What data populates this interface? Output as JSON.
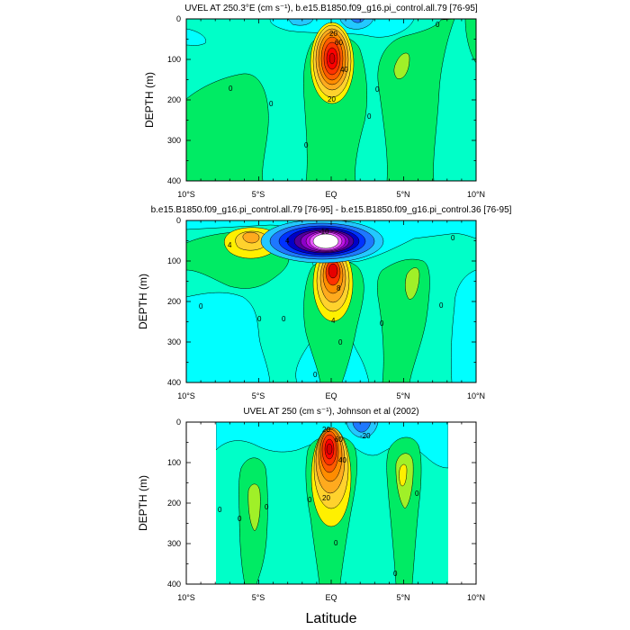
{
  "chart_data": [
    {
      "type": "heatmap",
      "title": "UVEL AT 250.3°E (cm s⁻¹), b.e15.B1850.f09_g16.pi_control.all.79 [76-95]",
      "ylabel": "DEPTH (m)",
      "xlabel": "",
      "xlim": [
        -10,
        10
      ],
      "ylim": [
        400,
        0
      ],
      "x_ticks": [
        "10°S",
        "5°S",
        "EQ",
        "5°N",
        "10°N"
      ],
      "y_ticks": [
        "0",
        "100",
        "200",
        "300",
        "400"
      ],
      "contour_labels": [
        "20",
        "40",
        "60",
        "20",
        "0",
        "0",
        "0",
        "0",
        "0",
        "0"
      ],
      "features": [
        {
          "name": "Equatorial Undercurrent core",
          "lat": 0.0,
          "depth": 100,
          "max_value": 100
        },
        {
          "name": "eastward tongue 4N",
          "lat": 3.5,
          "depth": 110,
          "value": 10
        }
      ]
    },
    {
      "type": "heatmap",
      "title": "b.e15.B1850.f09_g16.pi_control.all.79 [76-95] - b.e15.B1850.f09_g16.pi_control.36 [76-95]",
      "ylabel": "DEPTH (m)",
      "xlabel": "",
      "xlim": [
        -10,
        10
      ],
      "ylim": [
        400,
        0
      ],
      "x_ticks": [
        "10°S",
        "5°S",
        "EQ",
        "5°N",
        "10°N"
      ],
      "y_ticks": [
        "0",
        "100",
        "200",
        "300",
        "400"
      ],
      "contour_labels": [
        "-10",
        "8",
        "4",
        "0",
        "0",
        "0",
        "0",
        "0",
        "0",
        "0",
        "0",
        "4",
        "4"
      ],
      "features": [
        {
          "name": "negative difference core",
          "lat": -0.3,
          "depth": 45,
          "value": -12
        },
        {
          "name": "positive difference core",
          "lat": 0.2,
          "depth": 125,
          "value": 10
        },
        {
          "name": "positive near-surface 4S",
          "lat": -4.5,
          "depth": 50,
          "value": 6
        }
      ]
    },
    {
      "type": "heatmap",
      "title": "UVEL AT 250 (cm s⁻¹), Johnson et al (2002)",
      "ylabel": "DEPTH (m)",
      "xlabel": "Latitude",
      "xlim": [
        -10,
        10
      ],
      "ylim": [
        400,
        0
      ],
      "x_ticks": [
        "10°S",
        "5°S",
        "EQ",
        "5°N",
        "10°N"
      ],
      "y_ticks": [
        "0",
        "100",
        "200",
        "300",
        "400"
      ],
      "contour_labels": [
        "20",
        "40",
        "60",
        "20",
        "-20",
        "0",
        "0",
        "0",
        "0",
        "0",
        "0",
        "0"
      ],
      "features": [
        {
          "name": "Equatorial Undercurrent core",
          "lat": -0.1,
          "depth": 80,
          "max_value": 100
        },
        {
          "name": "eastward jet 5N",
          "lat": 4.8,
          "depth": 130,
          "value": 30
        },
        {
          "name": "eastward jet 4S",
          "lat": -4.6,
          "depth": 170,
          "value": 10
        }
      ]
    }
  ]
}
